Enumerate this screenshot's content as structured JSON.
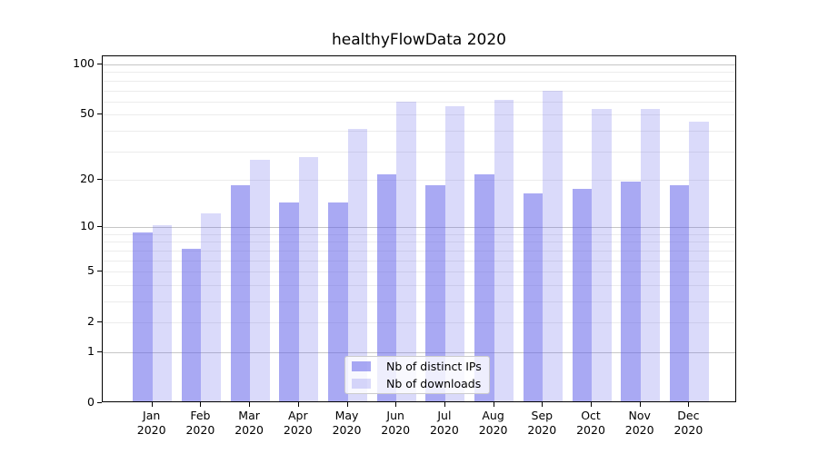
{
  "chart_data": {
    "type": "bar",
    "title": "healthyFlowData 2020",
    "yscale": "log1p-symlog",
    "categories": [
      "Jan",
      "Feb",
      "Mar",
      "Apr",
      "May",
      "Jun",
      "Jul",
      "Aug",
      "Sep",
      "Oct",
      "Nov",
      "Dec"
    ],
    "category_year": "2020",
    "series": [
      {
        "name": "Nb of distinct IPs",
        "values": [
          9,
          7,
          18,
          14,
          14,
          21,
          18,
          21,
          16,
          17,
          19,
          18
        ],
        "alpha": 0.55
      },
      {
        "name": "Nb of downloads",
        "values": [
          10,
          12,
          26,
          27,
          40,
          58,
          55,
          60,
          68,
          53,
          53,
          44
        ],
        "alpha": 0.24
      }
    ],
    "bar_base_color": "#6363e9",
    "yticks": [
      0,
      1,
      2,
      5,
      10,
      20,
      50,
      100
    ],
    "ylim": [
      0,
      113
    ],
    "xlabel": "",
    "ylabel": "",
    "grid": {
      "axis": "y",
      "major_ticks": [
        1,
        10,
        100
      ],
      "minor_ticks": [
        2,
        3,
        4,
        5,
        6,
        7,
        8,
        9,
        20,
        30,
        40,
        50,
        60,
        70,
        80,
        90
      ],
      "major_color": "#c6c6c6",
      "minor_color": "#ececec"
    },
    "legend": {
      "position": "lower center",
      "labels": [
        "Nb of distinct IPs",
        "Nb of downloads"
      ]
    }
  },
  "colors": {
    "background": "#ffffff",
    "axis": "#000000",
    "text": "#000000",
    "bar_dark_rendered": "#a9a9f2",
    "bar_light_rendered": "#dadaf9"
  }
}
